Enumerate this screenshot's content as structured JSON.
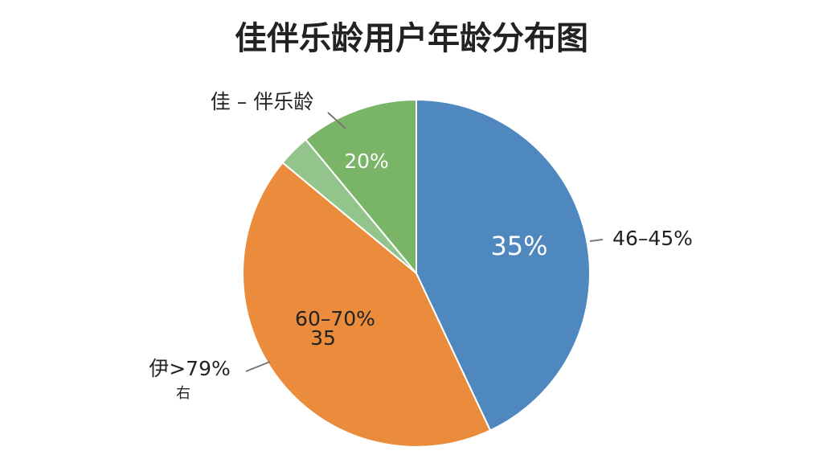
{
  "chart_data": {
    "type": "pie",
    "title": "佳伴乐龄用户年龄分布图",
    "values": [
      43,
      43,
      3,
      11
    ],
    "colors": [
      "#4e88bf",
      "#ea8c3c",
      "#93c48b",
      "#7ab467"
    ],
    "annotations": [
      "佳 – 伴乐龄",
      "20%",
      "35%",
      "46–45%",
      "60–70%",
      "35",
      "伊>79%",
      "右"
    ]
  }
}
